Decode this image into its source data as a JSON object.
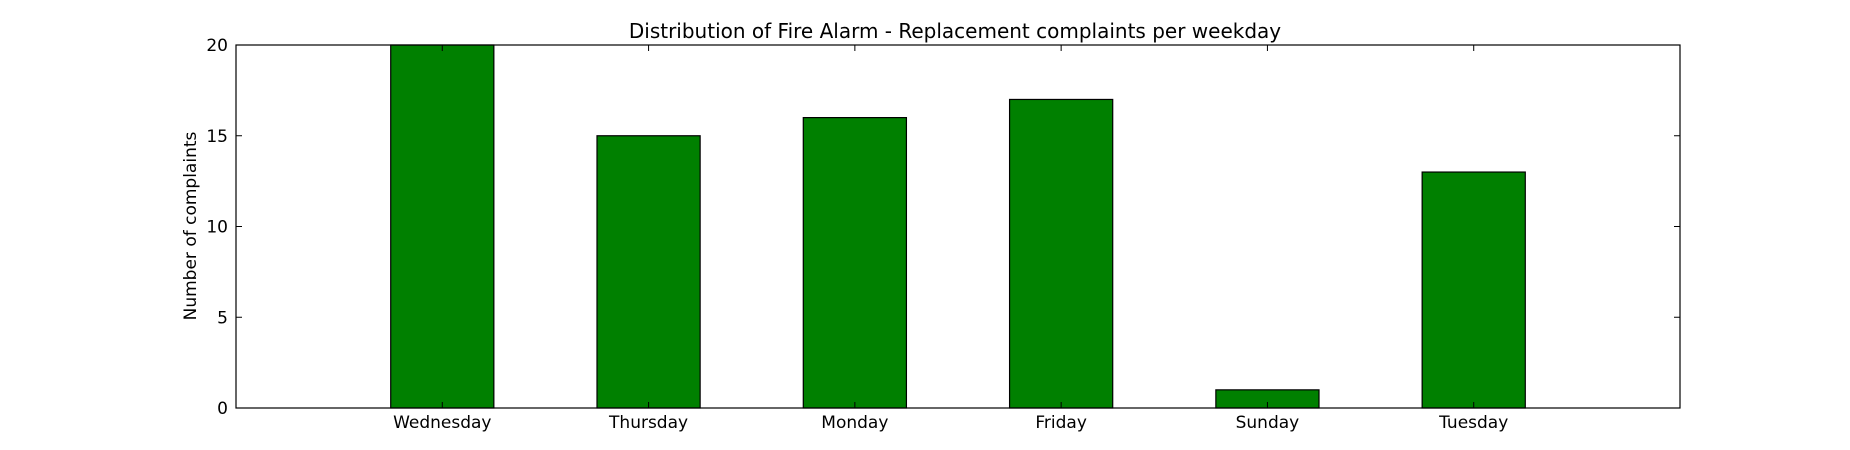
{
  "chart_data": {
    "type": "bar",
    "title": "Distribution of  Fire Alarm - Replacement complaints per weekday",
    "xlabel": "",
    "ylabel": "Number of complaints",
    "categories": [
      "Wednesday",
      "Thursday",
      "Monday",
      "Friday",
      "Sunday",
      "Tuesday"
    ],
    "values": [
      20,
      15,
      16,
      17,
      1,
      13
    ],
    "ylim": [
      0,
      20
    ],
    "yticks": [
      0,
      5,
      10,
      15,
      20
    ],
    "xlim": [
      -1,
      6
    ],
    "bar_color": "#008000",
    "grid": false,
    "legend": "none"
  }
}
